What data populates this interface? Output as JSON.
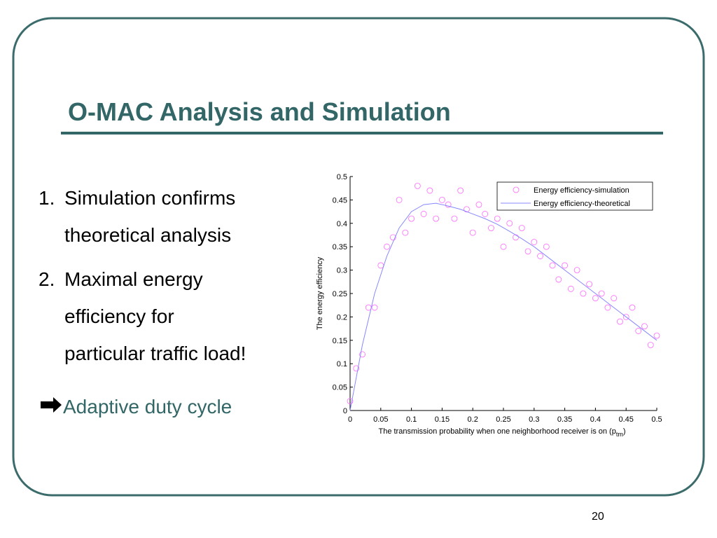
{
  "slide": {
    "title": "O-MAC Analysis and Simulation",
    "items": [
      {
        "number": "1.",
        "lines": [
          "Simulation confirms",
          "theoretical analysis"
        ]
      },
      {
        "number": "2.",
        "lines": [
          "Maximal energy",
          "efficiency for",
          "particular traffic load!"
        ]
      }
    ],
    "conclusion": "Adaptive duty cycle",
    "page_number": "20"
  },
  "chart_data": {
    "type": "scatter",
    "ylabel": "The energy efficiency",
    "xlabel_parts": [
      "The transmission probability when one neighborhood receiver is on (p",
      "tm",
      ")"
    ],
    "xlim": [
      0,
      0.5
    ],
    "ylim": [
      0,
      0.5
    ],
    "xticks": [
      0,
      0.05,
      0.1,
      0.15,
      0.2,
      0.25,
      0.3,
      0.35,
      0.4,
      0.45,
      0.5
    ],
    "yticks": [
      0,
      0.05,
      0.1,
      0.15,
      0.2,
      0.25,
      0.3,
      0.35,
      0.4,
      0.45,
      0.5
    ],
    "legend": "top-right",
    "series": [
      {
        "name": "Energy efficiency-simulation",
        "color": "#ff66ff",
        "style": "marker",
        "x": [
          0,
          0.01,
          0.02,
          0.03,
          0.04,
          0.05,
          0.06,
          0.07,
          0.08,
          0.09,
          0.1,
          0.11,
          0.12,
          0.13,
          0.14,
          0.15,
          0.16,
          0.17,
          0.18,
          0.19,
          0.2,
          0.21,
          0.22,
          0.23,
          0.24,
          0.25,
          0.26,
          0.27,
          0.28,
          0.29,
          0.3,
          0.31,
          0.32,
          0.33,
          0.34,
          0.35,
          0.36,
          0.37,
          0.38,
          0.39,
          0.4,
          0.41,
          0.42,
          0.43,
          0.44,
          0.45,
          0.46,
          0.47,
          0.48,
          0.49,
          0.5
        ],
        "values": [
          0.02,
          0.09,
          0.12,
          0.22,
          0.22,
          0.31,
          0.35,
          0.37,
          0.45,
          0.38,
          0.41,
          0.48,
          0.42,
          0.47,
          0.41,
          0.45,
          0.44,
          0.41,
          0.47,
          0.43,
          0.38,
          0.44,
          0.42,
          0.39,
          0.41,
          0.35,
          0.4,
          0.37,
          0.39,
          0.34,
          0.36,
          0.33,
          0.35,
          0.31,
          0.28,
          0.31,
          0.26,
          0.3,
          0.25,
          0.27,
          0.24,
          0.25,
          0.22,
          0.24,
          0.19,
          0.2,
          0.22,
          0.17,
          0.18,
          0.14,
          0.16
        ]
      },
      {
        "name": "Energy efficiency-theoretical",
        "color": "#8888ff",
        "style": "line",
        "x": [
          0,
          0.02,
          0.04,
          0.06,
          0.08,
          0.1,
          0.12,
          0.14,
          0.16,
          0.18,
          0.2,
          0.22,
          0.24,
          0.26,
          0.28,
          0.3,
          0.32,
          0.34,
          0.36,
          0.38,
          0.4,
          0.42,
          0.44,
          0.46,
          0.48,
          0.5
        ],
        "values": [
          0,
          0.14,
          0.25,
          0.33,
          0.39,
          0.425,
          0.44,
          0.443,
          0.437,
          0.43,
          0.42,
          0.41,
          0.398,
          0.383,
          0.367,
          0.35,
          0.33,
          0.31,
          0.29,
          0.27,
          0.25,
          0.23,
          0.21,
          0.19,
          0.17,
          0.15
        ]
      }
    ]
  }
}
